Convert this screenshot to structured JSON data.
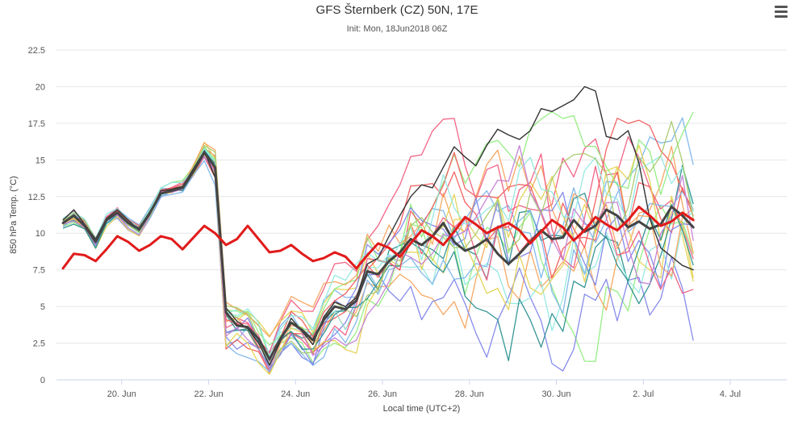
{
  "chart_data": {
    "type": "line",
    "title": "GFS Šternberk (CZ) 50N, 17E",
    "subtitle": "Init: Mon, 18Jun2018 06Z",
    "xlabel": "Local time (UTC+2)",
    "ylabel": "850 hPa Temp. (°C)",
    "ylim": [
      0,
      22.5
    ],
    "yticks": [
      "0",
      "2.5",
      "5",
      "7.5",
      "10",
      "12.5",
      "15",
      "17.5",
      "20",
      "22.5"
    ],
    "x_unit": "day",
    "xlim": [
      18.5,
      35.3
    ],
    "xticks": [
      {
        "x": 20,
        "label": "20. Jun"
      },
      {
        "x": 22,
        "label": "22. Jun"
      },
      {
        "x": 24,
        "label": "24. Jun"
      },
      {
        "x": 26,
        "label": "26. Jun"
      },
      {
        "x": 28,
        "label": "28. Jun"
      },
      {
        "x": 30,
        "label": "30. Jun"
      },
      {
        "x": 32,
        "label": "2. Jul"
      },
      {
        "x": 34,
        "label": "4. Jul"
      }
    ],
    "x_step_days": 0.25,
    "x_start": 18.65,
    "grid": "horizontal",
    "legend": "none",
    "base_path": [
      10.7,
      11.1,
      10.5,
      9.4,
      10.9,
      11.4,
      10.7,
      10.3,
      11.4,
      12.7,
      12.9,
      13.1,
      14.2,
      15.5,
      14.5,
      3.8,
      3.7,
      3.6,
      2.8,
      1.4,
      2.8,
      3.9,
      3.4,
      2.7,
      4.1,
      5.0,
      4.8,
      5.4,
      7.4,
      7.2,
      8.1,
      8.7,
      10.1,
      9.4,
      9.7,
      10.5,
      10.7,
      9.8,
      9.9,
      10.1,
      10.4,
      9.2,
      10.1,
      10.6,
      10.3,
      9.7,
      10.2,
      10.8,
      10.4,
      10.9,
      11.8,
      11.2,
      10.6,
      11.1,
      11.4,
      10.8,
      11.6,
      11.9,
      11.0
    ],
    "divergence": [
      0.3,
      0.3,
      0.3,
      0.3,
      0.3,
      0.3,
      0.3,
      0.3,
      0.3,
      0.3,
      0.3,
      0.3,
      0.3,
      0.4,
      0.6,
      1.0,
      1.0,
      1.0,
      1.0,
      1.0,
      1.0,
      1.0,
      1.0,
      1.1,
      1.2,
      1.3,
      1.4,
      1.5,
      1.6,
      1.8,
      2.0,
      2.2,
      2.4,
      2.6,
      2.8,
      3.0,
      3.1,
      3.2,
      3.3,
      3.4,
      3.5,
      3.6,
      3.7,
      3.8,
      3.9,
      4.0,
      4.1,
      4.2,
      4.2,
      4.2,
      4.2,
      4.2,
      4.2,
      4.2,
      4.2,
      4.2,
      4.2,
      4.2,
      4.2
    ],
    "series": [
      {
        "role": "mean",
        "color": "#444444",
        "values": [
          10.7,
          11.2,
          10.5,
          9.4,
          10.9,
          11.4,
          10.7,
          10.3,
          11.4,
          12.7,
          12.9,
          13.1,
          14.2,
          15.5,
          14.5,
          4.6,
          3.7,
          3.6,
          2.8,
          1.4,
          2.8,
          3.9,
          3.4,
          2.7,
          4.1,
          5.0,
          4.8,
          5.4,
          7.4,
          7.2,
          8.1,
          8.7,
          9.6,
          9.2,
          9.8,
          10.7,
          9.4,
          8.8,
          9.1,
          9.6,
          8.6,
          7.9,
          8.6,
          9.4,
          10.2,
          9.6,
          9.7,
          10.9,
          10.1,
          10.5,
          11.6,
          11.2,
          10.4,
          10.8,
          10.3,
          10.6,
          11.8,
          11.2,
          10.4
        ]
      },
      {
        "role": "climatology",
        "color": "#e11b1b",
        "values": [
          7.6,
          8.6,
          8.5,
          8.1,
          8.9,
          9.8,
          9.4,
          8.8,
          9.2,
          9.8,
          9.6,
          8.9,
          9.7,
          10.5,
          10.0,
          9.2,
          9.6,
          10.5,
          9.6,
          8.7,
          8.8,
          9.2,
          8.6,
          8.1,
          8.3,
          8.7,
          8.4,
          7.6,
          8.5,
          9.3,
          9.0,
          8.4,
          9.3,
          10.2,
          9.8,
          9.2,
          10.1,
          11.1,
          10.6,
          10.0,
          10.4,
          10.7,
          10.2,
          9.3,
          10.1,
          10.9,
          10.4,
          9.5,
          10.2,
          11.1,
          10.6,
          10.2,
          10.9,
          11.8,
          11.2,
          10.5,
          10.8,
          11.4,
          10.9
        ]
      },
      {
        "role": "control",
        "color": "#333333",
        "values": [
          10.9,
          11.6,
          10.6,
          9.6,
          11.0,
          11.6,
          10.9,
          10.2,
          11.3,
          12.9,
          13.0,
          13.2,
          14.4,
          15.6,
          13.8,
          4.9,
          4.0,
          3.5,
          2.5,
          1.0,
          2.6,
          4.2,
          3.3,
          2.4,
          4.3,
          5.3,
          5.0,
          5.6,
          7.9,
          8.3,
          9.8,
          11.2,
          12.5,
          13.3,
          13.1,
          14.5,
          15.9,
          15.2,
          14.6,
          16.0,
          17.1,
          16.7,
          16.4,
          17.0,
          18.5,
          18.3,
          18.7,
          19.1,
          20.0,
          19.7,
          16.6,
          16.4,
          17.0,
          14.8,
          11.0,
          9.0,
          8.4,
          7.8,
          7.5
        ]
      }
    ],
    "members": [
      {
        "color": "#7cb5ec",
        "seed": 1
      },
      {
        "color": "#90ed7d",
        "seed": 2
      },
      {
        "color": "#f7a35c",
        "seed": 3
      },
      {
        "color": "#8085e9",
        "seed": 4
      },
      {
        "color": "#f15c80",
        "seed": 5
      },
      {
        "color": "#e4d354",
        "seed": 6
      },
      {
        "color": "#2b908f",
        "seed": 7
      },
      {
        "color": "#f45b5b",
        "seed": 8
      },
      {
        "color": "#91e8e1",
        "seed": 9
      },
      {
        "color": "#7cb5ec",
        "seed": 10
      },
      {
        "color": "#90ed7d",
        "seed": 11
      },
      {
        "color": "#f7a35c",
        "seed": 12
      },
      {
        "color": "#8085e9",
        "seed": 13
      },
      {
        "color": "#f15c80",
        "seed": 14
      },
      {
        "color": "#e4d354",
        "seed": 15
      },
      {
        "color": "#2b908f",
        "seed": 16
      },
      {
        "color": "#f45b5b",
        "seed": 17
      },
      {
        "color": "#91e8e1",
        "seed": 18
      },
      {
        "color": "#a6c96a",
        "seed": 19
      },
      {
        "color": "#c47fd3",
        "seed": 20
      }
    ]
  },
  "menu": {
    "icon": "hamburger-menu-icon"
  }
}
